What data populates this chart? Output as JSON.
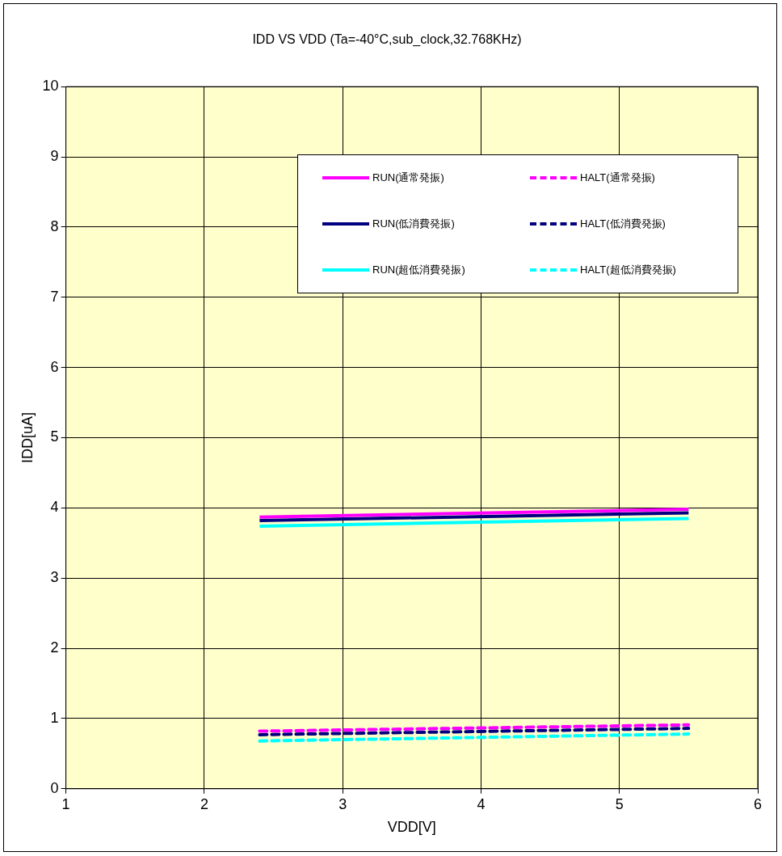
{
  "chart_data": {
    "type": "line",
    "title": "IDD VS VDD (Ta=-40°C,sub_clock,32.768KHz)",
    "xlabel": "VDD[V]",
    "ylabel": "IDD[uA]",
    "x": [
      2.4,
      5.5
    ],
    "series": [
      {
        "name": "RUN(通常発振)",
        "color": "#ff00ff",
        "values": [
          3.87,
          3.98
        ],
        "line_style": "solid"
      },
      {
        "name": "HALT(通常発振)",
        "color": "#ff00ff",
        "values": [
          0.82,
          0.91
        ],
        "line_style": "dashed"
      },
      {
        "name": "RUN(低消費発振)",
        "color": "#000080",
        "values": [
          3.82,
          3.93
        ],
        "line_style": "solid"
      },
      {
        "name": "HALT(低消費発振)",
        "color": "#000080",
        "values": [
          0.77,
          0.86
        ],
        "line_style": "dashed"
      },
      {
        "name": "RUN(超低消費発振)",
        "color": "#00ffff",
        "values": [
          3.74,
          3.85
        ],
        "line_style": "solid"
      },
      {
        "name": "HALT(超低消費発振)",
        "color": "#00ffff",
        "values": [
          0.68,
          0.78
        ],
        "line_style": "dashed"
      }
    ],
    "xlim": [
      1,
      6
    ],
    "xticks": [
      1,
      2,
      3,
      4,
      5,
      6
    ],
    "ylim": [
      0,
      10
    ],
    "yticks": [
      0,
      1,
      2,
      3,
      4,
      5,
      6,
      7,
      8,
      9,
      10
    ],
    "grid": true,
    "legend": "top right",
    "marker": "none"
  }
}
